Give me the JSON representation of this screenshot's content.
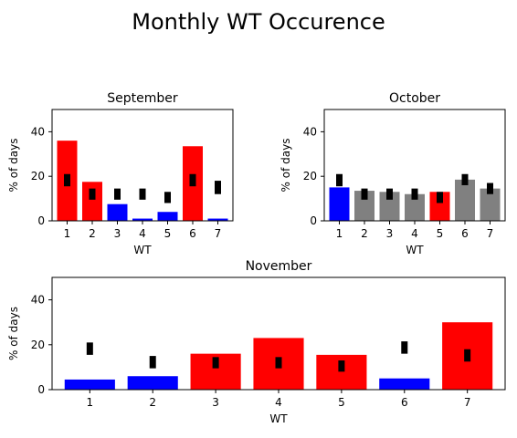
{
  "figure_title": "Monthly WT Occurence",
  "colors": {
    "red": "#ff0000",
    "blue": "#0000ff",
    "gray": "#808080",
    "marker": "#000000"
  },
  "chart_data": [
    {
      "type": "bar",
      "title": "September",
      "xlabel": "WT",
      "ylabel": "% of days",
      "categories": [
        "1",
        "2",
        "3",
        "4",
        "5",
        "6",
        "7"
      ],
      "values": [
        36,
        17.5,
        7.5,
        1,
        4,
        33.5,
        1
      ],
      "bar_colors": [
        "red",
        "red",
        "blue",
        "blue",
        "blue",
        "red",
        "blue"
      ],
      "markers": [
        {
          "low": 15.5,
          "high": 21
        },
        {
          "low": 9.5,
          "high": 14.5
        },
        {
          "low": 9.5,
          "high": 14.5
        },
        {
          "low": 9.5,
          "high": 14.5
        },
        {
          "low": 8,
          "high": 13
        },
        {
          "low": 15.5,
          "high": 21
        },
        {
          "low": 12,
          "high": 18
        }
      ],
      "ylim": [
        0,
        50
      ],
      "yticks": [
        0,
        20,
        40
      ],
      "grid": false
    },
    {
      "type": "bar",
      "title": "October",
      "xlabel": "WT",
      "ylabel": "% of days",
      "categories": [
        "1",
        "2",
        "3",
        "4",
        "5",
        "6",
        "7"
      ],
      "values": [
        15,
        13.5,
        13,
        12,
        13,
        18.5,
        14.5
      ],
      "bar_colors": [
        "blue",
        "gray",
        "gray",
        "gray",
        "red",
        "gray",
        "gray"
      ],
      "markers": [
        {
          "low": 15.5,
          "high": 21
        },
        {
          "low": 9.5,
          "high": 14.5
        },
        {
          "low": 9.5,
          "high": 14.5
        },
        {
          "low": 9.5,
          "high": 14.5
        },
        {
          "low": 8,
          "high": 13
        },
        {
          "low": 16,
          "high": 21
        },
        {
          "low": 12,
          "high": 17
        }
      ],
      "ylim": [
        0,
        50
      ],
      "yticks": [
        0,
        20,
        40
      ],
      "grid": false
    },
    {
      "type": "bar",
      "title": "November",
      "xlabel": "WT",
      "ylabel": "% of days",
      "categories": [
        "1",
        "2",
        "3",
        "4",
        "5",
        "6",
        "7"
      ],
      "values": [
        4.5,
        6,
        16,
        23,
        15.5,
        5,
        30
      ],
      "bar_colors": [
        "blue",
        "blue",
        "red",
        "red",
        "red",
        "blue",
        "red"
      ],
      "markers": [
        {
          "low": 15.5,
          "high": 21
        },
        {
          "low": 9.5,
          "high": 15
        },
        {
          "low": 9.5,
          "high": 14.5
        },
        {
          "low": 9.5,
          "high": 14.5
        },
        {
          "low": 8,
          "high": 13
        },
        {
          "low": 16,
          "high": 21.5
        },
        {
          "low": 12.5,
          "high": 18
        }
      ],
      "ylim": [
        0,
        50
      ],
      "yticks": [
        0,
        20,
        40
      ],
      "grid": false
    }
  ]
}
